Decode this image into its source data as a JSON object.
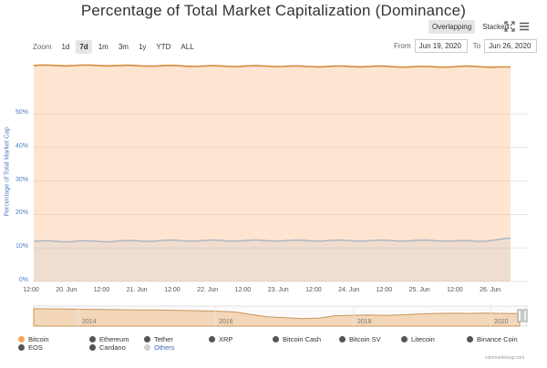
{
  "chart_data": {
    "type": "area",
    "title": "Percentage of Total Market Capitalization (Dominance)",
    "ylabel": "Percentage of Total Market Cap",
    "yticks": [
      "0%",
      "10%",
      "20%",
      "30%",
      "40%",
      "50%"
    ],
    "ylim": [
      0,
      65
    ],
    "xticks": [
      "12:00",
      "20. Jun",
      "12:00",
      "21. Jun",
      "12:00",
      "22. Jun",
      "12:00",
      "23. Jun",
      "12:00",
      "24. Jun",
      "12:00",
      "25. Jun",
      "12:00",
      "26. Jun"
    ],
    "x": [
      "2020-06-19 12:00",
      "2020-06-20 00:00",
      "2020-06-20 12:00",
      "2020-06-21 00:00",
      "2020-06-21 12:00",
      "2020-06-22 00:00",
      "2020-06-22 12:00",
      "2020-06-23 00:00",
      "2020-06-23 12:00",
      "2020-06-24 00:00",
      "2020-06-24 12:00",
      "2020-06-25 00:00",
      "2020-06-25 12:00",
      "2020-06-26 00:00",
      "2020-06-26 06:00"
    ],
    "series": [
      {
        "name": "Bitcoin",
        "color": "#f7a35c",
        "values": [
          64.5,
          64.5,
          64.5,
          64.4,
          64.4,
          64.3,
          64.3,
          64.3,
          64.2,
          64.2,
          64.2,
          64.1,
          64.1,
          64.2,
          63.9
        ]
      },
      {
        "name": "Others",
        "color": "#d0d0d0",
        "values": [
          12.0,
          12.0,
          12.0,
          12.1,
          12.2,
          12.2,
          12.2,
          12.2,
          12.2,
          12.2,
          12.2,
          12.2,
          12.2,
          12.0,
          12.8
        ]
      }
    ],
    "navigator": {
      "labels": [
        "2014",
        "2016",
        "2018",
        "2020"
      ],
      "values": [
        95,
        94,
        93,
        91,
        90,
        89,
        88,
        87,
        86,
        84,
        82,
        80,
        75,
        60,
        45,
        40,
        35,
        38,
        52,
        55,
        56,
        54,
        58,
        62,
        66,
        67,
        66,
        68,
        66,
        65
      ]
    },
    "legend_position": "bottom"
  },
  "toolbar": {
    "overlapping_label": "Overlapping",
    "stacked_label": "Stacked"
  },
  "zoom": {
    "label": "Zoom",
    "buttons": [
      "1d",
      "7d",
      "1m",
      "3m",
      "1y",
      "YTD",
      "ALL"
    ],
    "active": "7d"
  },
  "range": {
    "from_label": "From",
    "from_value": "Jun 19, 2020",
    "to_label": "To",
    "to_value": "Jun 26, 2020"
  },
  "legend": [
    {
      "name": "Bitcoin",
      "color": "#f7a35c"
    },
    {
      "name": "Ethereum",
      "color": "#555555"
    },
    {
      "name": "Tether",
      "color": "#555555"
    },
    {
      "name": "XRP",
      "color": "#555555"
    },
    {
      "name": "Bitcoin Cash",
      "color": "#555555"
    },
    {
      "name": "Bitcoin SV",
      "color": "#555555"
    },
    {
      "name": "Litecoin",
      "color": "#555555"
    },
    {
      "name": "Binance Coin",
      "color": "#555555"
    },
    {
      "name": "EOS",
      "color": "#555555"
    },
    {
      "name": "Cardano",
      "color": "#555555"
    },
    {
      "name": "Others",
      "color": "#d0d0d0",
      "selected": true
    }
  ],
  "credit": "coinmarketcap.com"
}
